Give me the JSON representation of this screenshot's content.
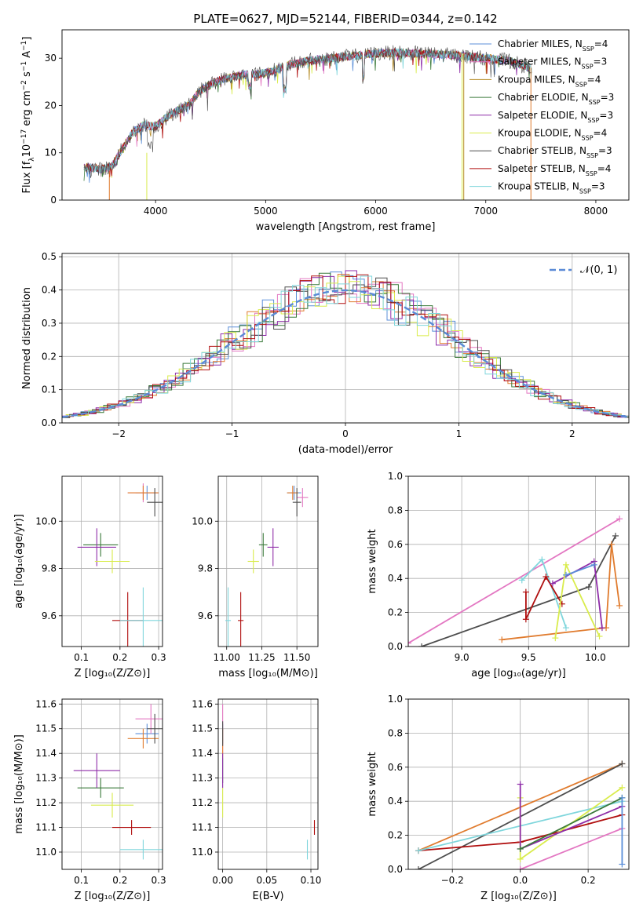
{
  "figure": {
    "title": "PLATE=0627, MJD=52144, FIBERID=0344, z=0.142"
  },
  "colors": {
    "Chabrier MILES": "#5b8fd9",
    "Salpeter MILES": "#e377c2",
    "Kroupa MILES": "#b58a23",
    "Chabrier ELODIE": "#3a7a3a",
    "Salpeter ELODIE": "#8e2ca8",
    "Kroupa ELODIE": "#d9ec4c",
    "Chabrier STELIB": "#4d4d4d",
    "Salpeter STELIB": "#b00e0e",
    "Kroupa STELIB": "#7fd6dc",
    "normal": "#5a8ad6",
    "orange": "#e07b2e"
  },
  "chart_data": [
    {
      "id": "spectrum",
      "type": "line",
      "xlabel": "wavelength [Angstrom, rest frame]",
      "ylabel_parts": [
        "Flux [f",
        "λ",
        "10",
        "−17",
        " erg cm",
        "−2",
        " s",
        "−1",
        " A",
        "−1",
        "]"
      ],
      "xlim": [
        3150,
        8300
      ],
      "ylim": [
        0,
        36
      ],
      "xticks": [
        4000,
        5000,
        6000,
        7000,
        8000
      ],
      "xtick_labels": [
        "4000",
        "5000",
        "6000",
        "7000",
        "8000"
      ],
      "yticks": [
        0,
        10,
        20,
        30
      ],
      "ytick_labels": [
        "0",
        "10",
        "20",
        "30"
      ],
      "continuum": {
        "x": [
          3350,
          3500,
          3600,
          3700,
          3800,
          3900,
          4000,
          4100,
          4200,
          4300,
          4400,
          4500,
          4600,
          4800,
          5000,
          5200,
          5400,
          5600,
          5800,
          6000,
          6200,
          6400,
          6600,
          6800,
          7000,
          7200,
          7400
        ],
        "y": [
          7.0,
          6.5,
          7.0,
          11.0,
          14.5,
          16.0,
          15.5,
          17.5,
          19.0,
          20.0,
          23.0,
          24.5,
          25.5,
          26.5,
          26.8,
          28.5,
          29.5,
          30.0,
          30.5,
          31.0,
          31.2,
          31.0,
          30.8,
          30.5,
          30.0,
          29.5,
          28.0
        ]
      },
      "legend": [
        {
          "name": "Chabrier MILES",
          "label_main": "Chabrier MILES, N",
          "label_sub": "SSP",
          "label_tail": "=4"
        },
        {
          "name": "Salpeter MILES",
          "label_main": "Salpeter MILES, N",
          "label_sub": "SSP",
          "label_tail": "=3"
        },
        {
          "name": "Kroupa MILES",
          "label_main": "Kroupa MILES, N",
          "label_sub": "SSP",
          "label_tail": "=4"
        },
        {
          "name": "Chabrier ELODIE",
          "label_main": "Chabrier ELODIE, N",
          "label_sub": "SSP",
          "label_tail": "=3"
        },
        {
          "name": "Salpeter ELODIE",
          "label_main": "Salpeter ELODIE, N",
          "label_sub": "SSP",
          "label_tail": "=3"
        },
        {
          "name": "Kroupa ELODIE",
          "label_main": "Kroupa ELODIE, N",
          "label_sub": "SSP",
          "label_tail": "=4"
        },
        {
          "name": "Chabrier STELIB",
          "label_main": "Chabrier STELIB, N",
          "label_sub": "SSP",
          "label_tail": "=3"
        },
        {
          "name": "Salpeter STELIB",
          "label_main": "Salpeter STELIB, N",
          "label_sub": "SSP",
          "label_tail": "=4"
        },
        {
          "name": "Kroupa STELIB",
          "label_main": "Kroupa STELIB, N",
          "label_sub": "SSP",
          "label_tail": "=3"
        }
      ],
      "legend_placement": "right"
    },
    {
      "id": "residuals",
      "type": "histogram",
      "xlabel": "(data-model)/error",
      "ylabel": "Normed distribution",
      "xlim": [
        -2.5,
        2.5
      ],
      "ylim": [
        0,
        0.51
      ],
      "xticks": [
        -2,
        -1,
        0,
        1,
        2
      ],
      "xtick_labels": [
        "−2",
        "−1",
        "0",
        "1",
        "2"
      ],
      "yticks": [
        0.0,
        0.1,
        0.2,
        0.3,
        0.4,
        0.5
      ],
      "ytick_labels": [
        "0.0",
        "0.1",
        "0.2",
        "0.3",
        "0.4",
        "0.5"
      ],
      "grid": true,
      "bin_width": 0.1,
      "normal_label": "𝒩(0, 1)",
      "normal_mean": 0,
      "normal_sigma": 1,
      "legend_placement": "top-right"
    },
    {
      "id": "age-vs-Z",
      "type": "scatter",
      "xlabel": "Z [log₁₀(Z/Z⊙)]",
      "ylabel": "age  [log₁₀(age/yr)]",
      "xlim": [
        0.05,
        0.31
      ],
      "ylim": [
        9.47,
        10.19
      ],
      "xticks": [
        0.1,
        0.2,
        0.3
      ],
      "xtick_labels": [
        "0.1",
        "0.2",
        "0.3"
      ],
      "yticks": [
        9.6,
        9.8,
        10.0
      ],
      "ytick_labels": [
        "9.6",
        "9.8",
        "10.0"
      ],
      "grid": true,
      "points": [
        {
          "name": "Chabrier MILES",
          "x": 0.27,
          "y": 10.12,
          "xerr": 0.03,
          "yerr": 0.03
        },
        {
          "name": "Salpeter MILES",
          "x": 0.26,
          "y": 10.12,
          "xerr": 0.04,
          "yerr": 0.04
        },
        {
          "name": "Kroupa MILES",
          "x": 0.26,
          "y": 10.12,
          "xerr": 0.04,
          "yerr": 0.03
        },
        {
          "name": "Chabrier ELODIE",
          "x": 0.15,
          "y": 9.9,
          "xerr": 0.045,
          "yerr": 0.05
        },
        {
          "name": "Salpeter ELODIE",
          "x": 0.14,
          "y": 9.89,
          "xerr": 0.05,
          "yerr": 0.08
        },
        {
          "name": "Kroupa ELODIE",
          "x": 0.18,
          "y": 9.83,
          "xerr": 0.045,
          "yerr": 0.05
        },
        {
          "name": "Chabrier STELIB",
          "x": 0.29,
          "y": 10.08,
          "xerr": 0.02,
          "yerr": 0.06
        },
        {
          "name": "Salpeter STELIB",
          "x": 0.22,
          "y": 9.58,
          "xerr": 0.04,
          "yerr": 0.12
        },
        {
          "name": "Kroupa STELIB",
          "x": 0.26,
          "y": 9.58,
          "xerr": 0.06,
          "yerr": 0.14
        }
      ]
    },
    {
      "id": "age-vs-mass",
      "type": "scatter",
      "xlabel": "mass [log₁₀(M/M⊙)]",
      "ylabel": "",
      "xlim": [
        10.94,
        11.65
      ],
      "ylim": [
        9.47,
        10.19
      ],
      "xticks": [
        11.0,
        11.25,
        11.5
      ],
      "xtick_labels": [
        "11.00",
        "11.25",
        "11.50"
      ],
      "yticks": [
        9.6,
        9.8,
        10.0
      ],
      "ytick_labels": [
        "9.6",
        "9.8",
        "10.0"
      ],
      "grid": true,
      "points": [
        {
          "name": "Chabrier MILES",
          "x": 11.48,
          "y": 10.12,
          "xerr": 0.05,
          "yerr": 0.03
        },
        {
          "name": "Salpeter MILES",
          "x": 11.54,
          "y": 10.1,
          "xerr": 0.04,
          "yerr": 0.04
        },
        {
          "name": "Kroupa MILES",
          "x": 11.47,
          "y": 10.12,
          "xerr": 0.04,
          "yerr": 0.03
        },
        {
          "name": "Chabrier ELODIE",
          "x": 11.26,
          "y": 9.9,
          "xerr": 0.03,
          "yerr": 0.05
        },
        {
          "name": "Salpeter ELODIE",
          "x": 11.33,
          "y": 9.89,
          "xerr": 0.04,
          "yerr": 0.08
        },
        {
          "name": "Kroupa ELODIE",
          "x": 11.19,
          "y": 9.83,
          "xerr": 0.04,
          "yerr": 0.05
        },
        {
          "name": "Chabrier STELIB",
          "x": 11.5,
          "y": 10.08,
          "xerr": 0.03,
          "yerr": 0.06
        },
        {
          "name": "Salpeter STELIB",
          "x": 11.1,
          "y": 9.58,
          "xerr": 0.02,
          "yerr": 0.12
        },
        {
          "name": "Kroupa STELIB",
          "x": 11.01,
          "y": 9.58,
          "xerr": 0.02,
          "yerr": 0.14
        }
      ]
    },
    {
      "id": "weight-vs-age",
      "type": "line",
      "xlabel": "age  [log₁₀(age/yr)]",
      "ylabel": "mass weight",
      "xlim": [
        8.6,
        10.25
      ],
      "ylim": [
        0,
        1
      ],
      "xticks": [
        9.0,
        9.5,
        10.0
      ],
      "xtick_labels": [
        "9.0",
        "9.5",
        "10.0"
      ],
      "yticks": [
        0.0,
        0.2,
        0.4,
        0.6,
        0.8,
        1.0
      ],
      "ytick_labels": [
        "0.0",
        "0.2",
        "0.4",
        "0.6",
        "0.8",
        "1.0"
      ],
      "grid": true,
      "series": [
        {
          "name": "Salpeter MILES",
          "x": [
            8.6,
            10.18
          ],
          "y": [
            0.02,
            0.75
          ]
        },
        {
          "name": "Chabrier STELIB",
          "x": [
            8.7,
            9.95,
            10.15
          ],
          "y": [
            0.0,
            0.35,
            0.65
          ]
        },
        {
          "name": "Kroupa MILES",
          "x": [
            9.3,
            10.08,
            10.12,
            10.18
          ],
          "y": [
            0.04,
            0.11,
            0.6,
            0.24
          ]
        },
        {
          "name": "Kroupa STELIB",
          "x": [
            9.45,
            9.6,
            9.78
          ],
          "y": [
            0.39,
            0.51,
            0.11
          ]
        },
        {
          "name": "Salpeter STELIB",
          "x": [
            9.48,
            9.48,
            9.63,
            9.75
          ],
          "y": [
            0.32,
            0.16,
            0.41,
            0.25
          ]
        },
        {
          "name": "Salpeter ELODIE",
          "x": [
            9.68,
            9.99,
            10.05
          ],
          "y": [
            0.37,
            0.5,
            0.11
          ]
        },
        {
          "name": "Kroupa ELODIE",
          "x": [
            9.7,
            9.78,
            10.03
          ],
          "y": [
            0.05,
            0.48,
            0.06
          ]
        },
        {
          "name": "Chabrier MILES",
          "x": [
            9.78,
            9.99
          ],
          "y": [
            0.42,
            0.48
          ]
        }
      ]
    },
    {
      "id": "mass-vs-Z",
      "type": "scatter",
      "xlabel": "Z [log₁₀(Z/Z⊙)]",
      "ylabel": "mass [log₁₀(M/M⊙)]",
      "xlim": [
        0.05,
        0.31
      ],
      "ylim": [
        10.93,
        11.62
      ],
      "xticks": [
        0.1,
        0.2,
        0.3
      ],
      "xtick_labels": [
        "0.1",
        "0.2",
        "0.3"
      ],
      "yticks": [
        11.0,
        11.1,
        11.2,
        11.3,
        11.4,
        11.5,
        11.6
      ],
      "ytick_labels": [
        "11.0",
        "11.1",
        "11.2",
        "11.3",
        "11.4",
        "11.5",
        "11.6"
      ],
      "grid": true,
      "points": [
        {
          "name": "Chabrier MILES",
          "x": 0.27,
          "y": 11.48,
          "xerr": 0.03,
          "yerr": 0.04
        },
        {
          "name": "Salpeter MILES",
          "x": 0.28,
          "y": 11.54,
          "xerr": 0.04,
          "yerr": 0.06
        },
        {
          "name": "Kroupa MILES",
          "x": 0.26,
          "y": 11.46,
          "xerr": 0.04,
          "yerr": 0.04
        },
        {
          "name": "Chabrier ELODIE",
          "x": 0.15,
          "y": 11.26,
          "xerr": 0.06,
          "yerr": 0.04
        },
        {
          "name": "Salpeter ELODIE",
          "x": 0.14,
          "y": 11.33,
          "xerr": 0.06,
          "yerr": 0.07
        },
        {
          "name": "Kroupa ELODIE",
          "x": 0.18,
          "y": 11.19,
          "xerr": 0.055,
          "yerr": 0.05
        },
        {
          "name": "Chabrier STELIB",
          "x": 0.29,
          "y": 11.5,
          "xerr": 0.02,
          "yerr": 0.06
        },
        {
          "name": "Salpeter STELIB",
          "x": 0.23,
          "y": 11.1,
          "xerr": 0.05,
          "yerr": 0.03
        },
        {
          "name": "Kroupa STELIB",
          "x": 0.26,
          "y": 11.01,
          "xerr": 0.06,
          "yerr": 0.04
        }
      ]
    },
    {
      "id": "mass-vs-ebv",
      "type": "scatter",
      "xlabel": "E(B-V)",
      "ylabel": "",
      "xlim": [
        -0.005,
        0.108
      ],
      "ylim": [
        10.93,
        11.62
      ],
      "xticks": [
        0.0,
        0.05,
        0.1
      ],
      "xtick_labels": [
        "0.00",
        "0.05",
        "0.10"
      ],
      "yticks": [
        11.0,
        11.1,
        11.2,
        11.3,
        11.4,
        11.5,
        11.6
      ],
      "ytick_labels": [
        "11.0",
        "11.1",
        "11.2",
        "11.3",
        "11.4",
        "11.5",
        "11.6"
      ],
      "grid": true,
      "points": [
        {
          "name": "Chabrier MILES",
          "x": 0.0,
          "y": 11.48,
          "xerr": 0.0,
          "yerr": 0.04
        },
        {
          "name": "Salpeter MILES",
          "x": 0.0,
          "y": 11.5,
          "xerr": 0.0,
          "yerr": 0.1
        },
        {
          "name": "Kroupa MILES",
          "x": 0.0,
          "y": 11.44,
          "xerr": 0.0,
          "yerr": 0.06
        },
        {
          "name": "Chabrier ELODIE",
          "x": 0.0,
          "y": 11.33,
          "xerr": 0.0,
          "yerr": 0.05
        },
        {
          "name": "Salpeter ELODIE",
          "x": 0.0,
          "y": 11.33,
          "xerr": 0.0,
          "yerr": 0.07
        },
        {
          "name": "Kroupa ELODIE",
          "x": 0.0,
          "y": 11.2,
          "xerr": 0.0,
          "yerr": 0.06
        },
        {
          "name": "Chabrier STELIB",
          "x": 0.0,
          "y": 11.48,
          "xerr": 0.0,
          "yerr": 0.05
        },
        {
          "name": "Salpeter STELIB",
          "x": 0.104,
          "y": 11.1,
          "xerr": 0.0,
          "yerr": 0.03
        },
        {
          "name": "Kroupa STELIB",
          "x": 0.096,
          "y": 11.01,
          "xerr": 0.0,
          "yerr": 0.04
        }
      ]
    },
    {
      "id": "weight-vs-Z",
      "type": "line",
      "xlabel": "Z [log₁₀(Z/Z⊙)]",
      "ylabel": "mass weight",
      "xlim": [
        -0.33,
        0.32
      ],
      "ylim": [
        0,
        1
      ],
      "xticks": [
        -0.2,
        0.0,
        0.2
      ],
      "xtick_labels": [
        "−0.2",
        "0.0",
        "0.2"
      ],
      "yticks": [
        0.0,
        0.2,
        0.4,
        0.6,
        0.8,
        1.0
      ],
      "ytick_labels": [
        "0.0",
        "0.2",
        "0.4",
        "0.6",
        "0.8",
        "1.0"
      ],
      "grid": true,
      "series": [
        {
          "name": "Kroupa MILES",
          "x": [
            -0.3,
            0.3
          ],
          "y": [
            0.11,
            0.62
          ]
        },
        {
          "name": "Chabrier STELIB",
          "x": [
            -0.3,
            0.3
          ],
          "y": [
            0.0,
            0.62
          ]
        },
        {
          "name": "Salpeter STELIB",
          "x": [
            -0.3,
            0.0,
            0.3
          ],
          "y": [
            0.11,
            0.16,
            0.32
          ]
        },
        {
          "name": "Kroupa STELIB",
          "x": [
            -0.3,
            0.3
          ],
          "y": [
            0.11,
            0.4
          ]
        },
        {
          "name": "Salpeter MILES",
          "x": [
            0.0,
            0.3
          ],
          "y": [
            0.0,
            0.24
          ]
        },
        {
          "name": "Kroupa ELODIE",
          "x": [
            0.0,
            0.0,
            0.3
          ],
          "y": [
            0.42,
            0.06,
            0.48
          ]
        },
        {
          "name": "Salpeter ELODIE",
          "x": [
            0.0,
            0.0,
            0.3
          ],
          "y": [
            0.5,
            0.12,
            0.37
          ]
        },
        {
          "name": "Chabrier ELODIE",
          "x": [
            0.0,
            0.3
          ],
          "y": [
            0.12,
            0.42
          ]
        },
        {
          "name": "Chabrier MILES",
          "x": [
            0.3,
            0.3
          ],
          "y": [
            0.03,
            0.42
          ]
        }
      ]
    }
  ]
}
